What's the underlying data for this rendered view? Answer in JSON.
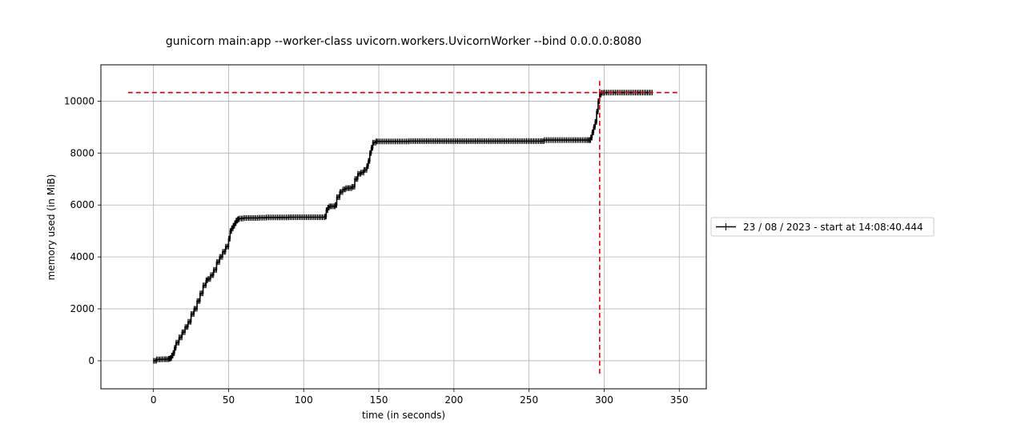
{
  "chart_data": {
    "type": "line",
    "title": "gunicorn main:app --worker-class uvicorn.workers.UvicornWorker --bind 0.0.0.0:8080",
    "xlabel": "time (in seconds)",
    "ylabel": "memory used (in MiB)",
    "xlim": [
      -35,
      368
    ],
    "ylim": [
      -1080,
      11400
    ],
    "xticks": [
      0,
      50,
      100,
      150,
      200,
      250,
      300,
      350
    ],
    "yticks": [
      0,
      2000,
      4000,
      6000,
      8000,
      10000
    ],
    "grid": true,
    "legend_placement": "right, outside plot area",
    "series": [
      {
        "name": "23 / 08 / 2023 - start at 14:08:40.444",
        "color": "#000000",
        "marker": "+",
        "x": [
          0,
          2,
          5,
          8,
          10,
          11,
          12,
          13,
          14,
          15,
          17,
          19,
          21,
          23,
          25,
          27,
          29,
          31,
          33,
          35,
          36,
          38,
          40,
          42,
          44,
          46,
          48,
          50,
          51,
          52,
          53,
          54,
          55,
          56,
          57,
          60,
          65,
          70,
          75,
          80,
          85,
          90,
          95,
          100,
          105,
          110,
          114,
          115,
          116,
          117,
          119,
          121,
          122,
          124,
          126,
          128,
          130,
          132,
          134,
          136,
          138,
          140,
          142,
          143,
          144,
          145,
          146,
          148,
          150,
          155,
          160,
          170,
          180,
          190,
          200,
          210,
          220,
          230,
          240,
          250,
          258,
          260,
          270,
          280,
          288,
          290,
          291,
          292,
          293,
          294,
          295,
          296,
          297,
          298,
          300,
          310,
          320,
          332
        ],
        "y": [
          0,
          50,
          60,
          60,
          80,
          100,
          200,
          300,
          500,
          700,
          900,
          1100,
          1300,
          1500,
          1800,
          2000,
          2300,
          2600,
          2900,
          3100,
          3150,
          3300,
          3500,
          3800,
          4000,
          4200,
          4400,
          4700,
          5000,
          5100,
          5200,
          5300,
          5400,
          5450,
          5480,
          5500,
          5500,
          5510,
          5520,
          5520,
          5520,
          5530,
          5530,
          5530,
          5530,
          5530,
          5550,
          5800,
          5900,
          5950,
          5950,
          6000,
          6300,
          6500,
          6600,
          6650,
          6650,
          6700,
          7000,
          7200,
          7250,
          7350,
          7500,
          7700,
          8000,
          8200,
          8400,
          8450,
          8450,
          8450,
          8450,
          8460,
          8460,
          8460,
          8460,
          8460,
          8460,
          8460,
          8460,
          8460,
          8460,
          8500,
          8500,
          8500,
          8500,
          8500,
          8600,
          8800,
          9000,
          9200,
          9600,
          10000,
          10250,
          10320,
          10330,
          10330,
          10330,
          10330
        ]
      }
    ],
    "markers": {
      "hline_y": 10330,
      "hline_x_range": [
        -17,
        350
      ],
      "vline_x": 297,
      "vline_y_range": [
        -500,
        10850
      ],
      "marker_color": "#e00000"
    }
  }
}
